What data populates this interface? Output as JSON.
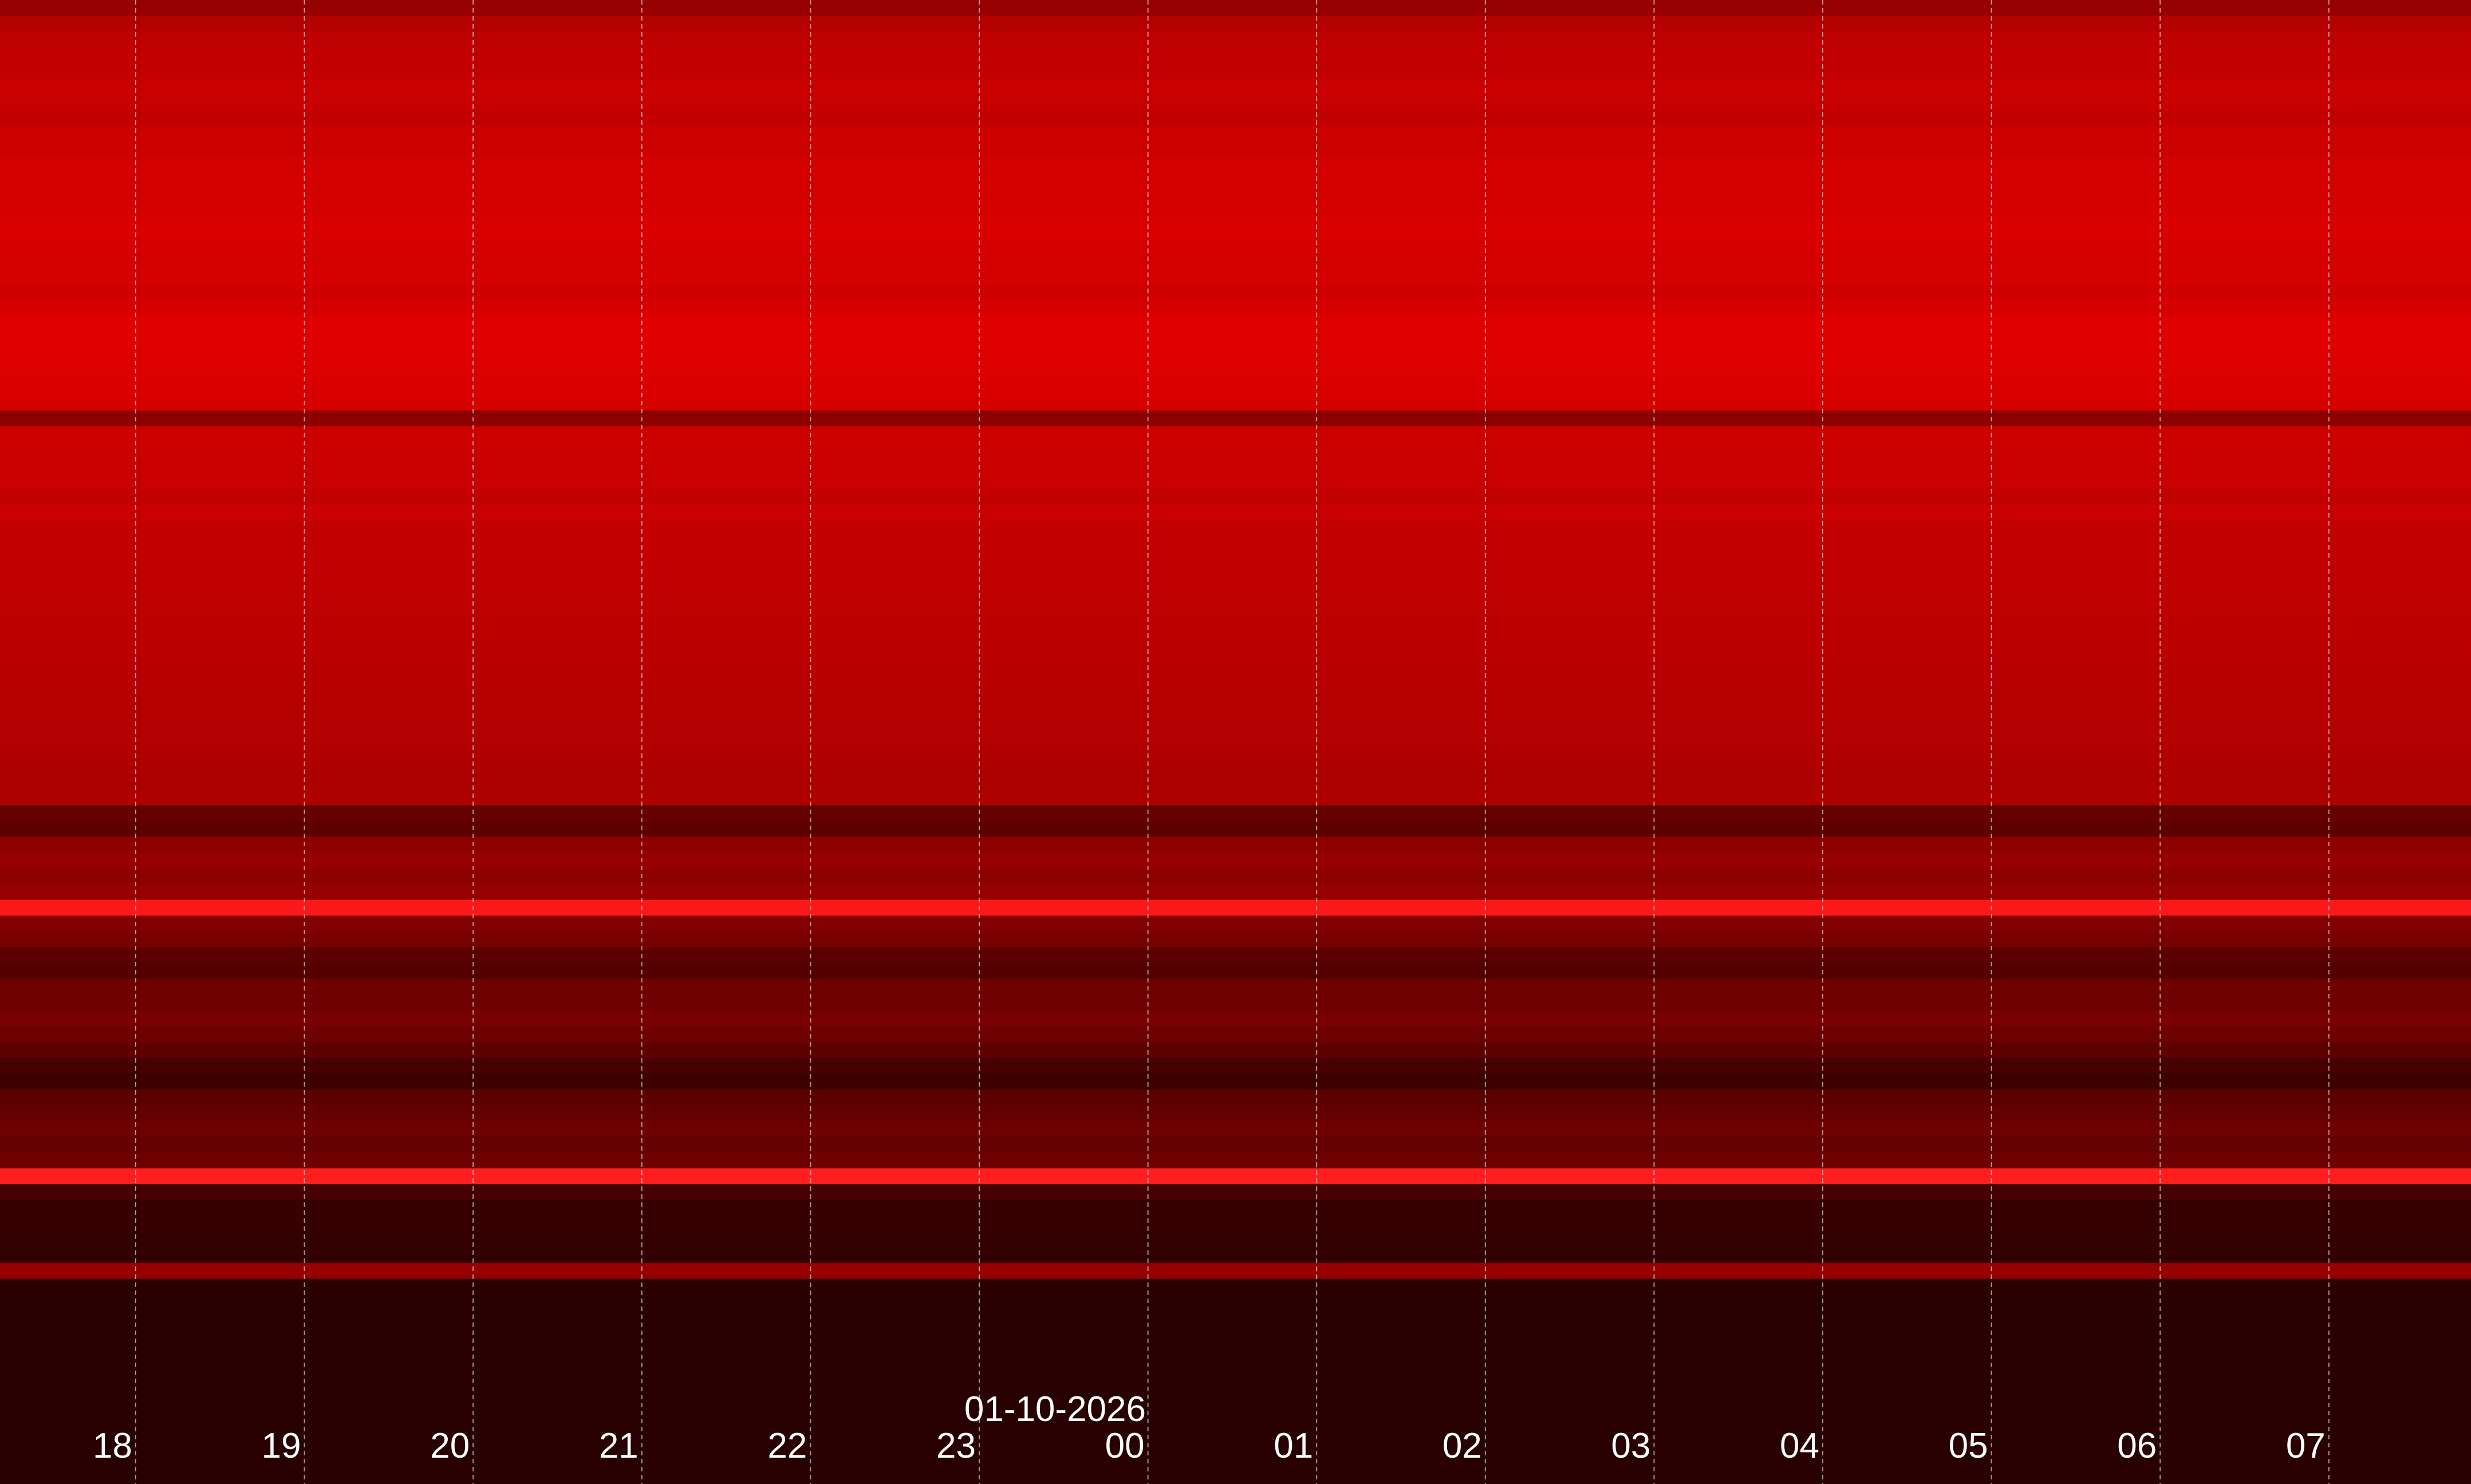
{
  "chart_data": {
    "type": "heatmap",
    "title": "",
    "xlabel": "",
    "ylabel": "",
    "date_label": "01-10-2026",
    "x_ticks": [
      "18",
      "19",
      "20",
      "21",
      "22",
      "23",
      "00",
      "01",
      "02",
      "03",
      "04",
      "05",
      "06",
      "07"
    ],
    "grid": true,
    "colormap": [
      "#000000",
      "#ff0000"
    ],
    "row_intensity": [
      150,
      180,
      190,
      195,
      195,
      200,
      200,
      195,
      205,
      205,
      210,
      212,
      212,
      215,
      218,
      215,
      212,
      215,
      208,
      215,
      225,
      225,
      222,
      220,
      218,
      215,
      140,
      205,
      205,
      200,
      200,
      195,
      200,
      195,
      195,
      195,
      192,
      190,
      190,
      188,
      188,
      186,
      185,
      185,
      182,
      180,
      180,
      178,
      175,
      170,
      175,
      100,
      95,
      140,
      150,
      140,
      150,
      250,
      130,
      120,
      90,
      85,
      110,
      110,
      120,
      110,
      95,
      70,
      60,
      90,
      100,
      110,
      100,
      110,
      255,
      70,
      55,
      55,
      50,
      50,
      150,
      45,
      40,
      40,
      40,
      40,
      40,
      40,
      40,
      40,
      40,
      40,
      40,
      40
    ]
  }
}
